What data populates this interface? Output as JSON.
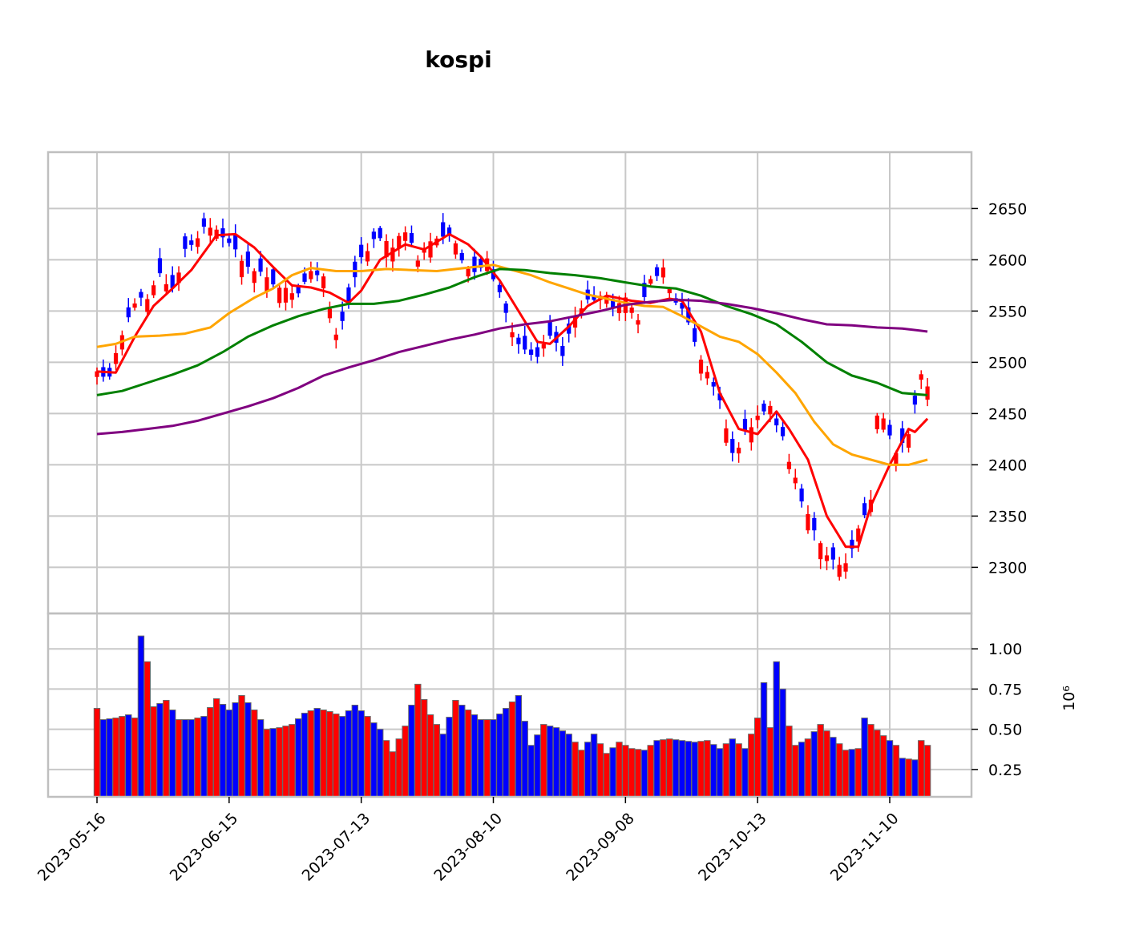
{
  "chart_data": {
    "type": "candlestick",
    "title": "kospi",
    "xlabel": "",
    "ylabel": "",
    "x_tick_labels": [
      "2023-05-16",
      "2023-06-15",
      "2023-07-13",
      "2023-08-10",
      "2023-09-08",
      "2023-10-13",
      "2023-11-10"
    ],
    "x_tick_index": [
      0,
      21,
      42,
      63,
      84,
      105,
      126
    ],
    "num_sessions": 133,
    "grid": true,
    "price_panel": {
      "ylim": [
        2255,
        2705
      ],
      "yticks": [
        2300,
        2350,
        2400,
        2450,
        2500,
        2550,
        2600,
        2650
      ],
      "up_color": "#ff0000",
      "down_color": "#0000ff",
      "anchors": [
        [
          0,
          2490
        ],
        [
          2,
          2485
        ],
        [
          4,
          2525
        ],
        [
          6,
          2560
        ],
        [
          8,
          2560
        ],
        [
          10,
          2585
        ],
        [
          12,
          2570
        ],
        [
          14,
          2610
        ],
        [
          17,
          2630
        ],
        [
          20,
          2625
        ],
        [
          23,
          2600
        ],
        [
          25,
          2590
        ],
        [
          27,
          2580
        ],
        [
          30,
          2570
        ],
        [
          32,
          2570
        ],
        [
          34,
          2590
        ],
        [
          36,
          2580
        ],
        [
          38,
          2525
        ],
        [
          40,
          2560
        ],
        [
          42,
          2600
        ],
        [
          44,
          2620
        ],
        [
          47,
          2615
        ],
        [
          49,
          2630
        ],
        [
          51,
          2600
        ],
        [
          53,
          2620
        ],
        [
          56,
          2625
        ],
        [
          58,
          2600
        ],
        [
          60,
          2590
        ],
        [
          62,
          2600
        ],
        [
          64,
          2570
        ],
        [
          66,
          2530
        ],
        [
          68,
          2510
        ],
        [
          70,
          2505
        ],
        [
          72,
          2525
        ],
        [
          74,
          2510
        ],
        [
          76,
          2545
        ],
        [
          78,
          2560
        ],
        [
          80,
          2565
        ],
        [
          82,
          2555
        ],
        [
          84,
          2560
        ],
        [
          86,
          2545
        ],
        [
          88,
          2580
        ],
        [
          90,
          2590
        ],
        [
          91,
          2570
        ],
        [
          93,
          2550
        ],
        [
          95,
          2520
        ],
        [
          97,
          2490
        ],
        [
          99,
          2460
        ],
        [
          101,
          2410
        ],
        [
          103,
          2430
        ],
        [
          105,
          2450
        ],
        [
          107,
          2455
        ],
        [
          109,
          2425
        ],
        [
          111,
          2385
        ],
        [
          112,
          2365
        ],
        [
          114,
          2340
        ],
        [
          116,
          2310
        ],
        [
          118,
          2300
        ],
        [
          119,
          2300
        ],
        [
          121,
          2335
        ],
        [
          123,
          2370
        ],
        [
          124,
          2450
        ],
        [
          125,
          2445
        ],
        [
          127,
          2410
        ],
        [
          129,
          2430
        ],
        [
          131,
          2485
        ],
        [
          132,
          2475
        ]
      ],
      "moving_averages": [
        {
          "color": "#ff0000",
          "points": [
            [
              0,
              2491
            ],
            [
              3,
              2490
            ],
            [
              6,
              2525
            ],
            [
              9,
              2555
            ],
            [
              12,
              2572
            ],
            [
              15,
              2590
            ],
            [
              19,
              2624
            ],
            [
              22,
              2625
            ],
            [
              25,
              2612
            ],
            [
              28,
              2593
            ],
            [
              31,
              2575
            ],
            [
              34,
              2573
            ],
            [
              37,
              2568
            ],
            [
              40,
              2558
            ],
            [
              42,
              2570
            ],
            [
              45,
              2600
            ],
            [
              49,
              2615
            ],
            [
              52,
              2610
            ],
            [
              56,
              2625
            ],
            [
              59,
              2615
            ],
            [
              61,
              2603
            ],
            [
              64,
              2580
            ],
            [
              67,
              2550
            ],
            [
              70,
              2520
            ],
            [
              72,
              2518
            ],
            [
              75,
              2535
            ],
            [
              78,
              2555
            ],
            [
              81,
              2565
            ],
            [
              85,
              2560
            ],
            [
              88,
              2558
            ],
            [
              91,
              2562
            ],
            [
              93,
              2560
            ],
            [
              96,
              2530
            ],
            [
              99,
              2470
            ],
            [
              102,
              2435
            ],
            [
              105,
              2430
            ],
            [
              108,
              2452
            ],
            [
              110,
              2435
            ],
            [
              113,
              2405
            ],
            [
              116,
              2350
            ],
            [
              119,
              2320
            ],
            [
              121,
              2320
            ],
            [
              123,
              2360
            ],
            [
              126,
              2400
            ],
            [
              129,
              2435
            ],
            [
              130,
              2432
            ],
            [
              132,
              2445
            ]
          ]
        },
        {
          "color": "#ffa500",
          "points": [
            [
              0,
              2515
            ],
            [
              3,
              2518
            ],
            [
              6,
              2525
            ],
            [
              10,
              2526
            ],
            [
              14,
              2528
            ],
            [
              18,
              2534
            ],
            [
              21,
              2548
            ],
            [
              25,
              2563
            ],
            [
              28,
              2572
            ],
            [
              31,
              2585
            ],
            [
              34,
              2592
            ],
            [
              38,
              2589
            ],
            [
              42,
              2589
            ],
            [
              46,
              2591
            ],
            [
              50,
              2590
            ],
            [
              54,
              2589
            ],
            [
              57,
              2591
            ],
            [
              60,
              2593
            ],
            [
              63,
              2595
            ],
            [
              66,
              2590
            ],
            [
              69,
              2585
            ],
            [
              72,
              2578
            ],
            [
              75,
              2572
            ],
            [
              78,
              2566
            ],
            [
              81,
              2562
            ],
            [
              84,
              2558
            ],
            [
              87,
              2555
            ],
            [
              90,
              2554
            ],
            [
              93,
              2545
            ],
            [
              96,
              2535
            ],
            [
              99,
              2525
            ],
            [
              102,
              2520
            ],
            [
              105,
              2508
            ],
            [
              108,
              2490
            ],
            [
              111,
              2470
            ],
            [
              114,
              2442
            ],
            [
              117,
              2420
            ],
            [
              120,
              2410
            ],
            [
              123,
              2405
            ],
            [
              126,
              2400
            ],
            [
              129,
              2400
            ],
            [
              132,
              2405
            ]
          ]
        },
        {
          "color": "#008000",
          "points": [
            [
              0,
              2468
            ],
            [
              4,
              2472
            ],
            [
              8,
              2480
            ],
            [
              12,
              2488
            ],
            [
              16,
              2497
            ],
            [
              20,
              2510
            ],
            [
              24,
              2525
            ],
            [
              28,
              2536
            ],
            [
              32,
              2545
            ],
            [
              36,
              2552
            ],
            [
              40,
              2557
            ],
            [
              44,
              2557
            ],
            [
              48,
              2560
            ],
            [
              52,
              2566
            ],
            [
              56,
              2573
            ],
            [
              60,
              2583
            ],
            [
              64,
              2591
            ],
            [
              68,
              2590
            ],
            [
              72,
              2587
            ],
            [
              76,
              2585
            ],
            [
              80,
              2582
            ],
            [
              84,
              2578
            ],
            [
              88,
              2574
            ],
            [
              92,
              2572
            ],
            [
              96,
              2565
            ],
            [
              100,
              2555
            ],
            [
              104,
              2547
            ],
            [
              108,
              2537
            ],
            [
              112,
              2520
            ],
            [
              116,
              2500
            ],
            [
              120,
              2487
            ],
            [
              124,
              2480
            ],
            [
              128,
              2470
            ],
            [
              132,
              2468
            ]
          ]
        },
        {
          "color": "#800080",
          "points": [
            [
              0,
              2430
            ],
            [
              4,
              2432
            ],
            [
              8,
              2435
            ],
            [
              12,
              2438
            ],
            [
              16,
              2443
            ],
            [
              20,
              2450
            ],
            [
              24,
              2457
            ],
            [
              28,
              2465
            ],
            [
              32,
              2475
            ],
            [
              36,
              2487
            ],
            [
              40,
              2495
            ],
            [
              44,
              2502
            ],
            [
              48,
              2510
            ],
            [
              52,
              2516
            ],
            [
              56,
              2522
            ],
            [
              60,
              2527
            ],
            [
              64,
              2533
            ],
            [
              68,
              2537
            ],
            [
              72,
              2540
            ],
            [
              76,
              2545
            ],
            [
              80,
              2550
            ],
            [
              84,
              2556
            ],
            [
              88,
              2559
            ],
            [
              92,
              2561
            ],
            [
              96,
              2560
            ],
            [
              100,
              2557
            ],
            [
              104,
              2553
            ],
            [
              108,
              2548
            ],
            [
              112,
              2542
            ],
            [
              116,
              2537
            ],
            [
              120,
              2536
            ],
            [
              124,
              2534
            ],
            [
              128,
              2533
            ],
            [
              132,
              2530
            ]
          ]
        }
      ]
    },
    "volume_panel": {
      "scale_label": "10⁶",
      "ylim": [
        0.08,
        1.22
      ],
      "yticks": [
        0.25,
        0.5,
        0.75,
        1.0
      ],
      "ytick_labels": [
        "0.25",
        "0.50",
        "0.75",
        "1.00"
      ],
      "anchors": [
        [
          0,
          0.63
        ],
        [
          1,
          0.56
        ],
        [
          3,
          0.57
        ],
        [
          5,
          0.59
        ],
        [
          6,
          0.57
        ],
        [
          7,
          1.08
        ],
        [
          8,
          0.92
        ],
        [
          9,
          0.64
        ],
        [
          11,
          0.68
        ],
        [
          13,
          0.56
        ],
        [
          15,
          0.56
        ],
        [
          17,
          0.58
        ],
        [
          19,
          0.69
        ],
        [
          21,
          0.62
        ],
        [
          23,
          0.71
        ],
        [
          25,
          0.62
        ],
        [
          27,
          0.5
        ],
        [
          29,
          0.51
        ],
        [
          31,
          0.53
        ],
        [
          33,
          0.6
        ],
        [
          35,
          0.63
        ],
        [
          37,
          0.61
        ],
        [
          39,
          0.58
        ],
        [
          41,
          0.65
        ],
        [
          43,
          0.58
        ],
        [
          45,
          0.5
        ],
        [
          46,
          0.43
        ],
        [
          47,
          0.36
        ],
        [
          49,
          0.52
        ],
        [
          51,
          0.78
        ],
        [
          53,
          0.59
        ],
        [
          55,
          0.47
        ],
        [
          57,
          0.68
        ],
        [
          59,
          0.62
        ],
        [
          61,
          0.56
        ],
        [
          63,
          0.56
        ],
        [
          65,
          0.63
        ],
        [
          67,
          0.71
        ],
        [
          68,
          0.55
        ],
        [
          69,
          0.4
        ],
        [
          71,
          0.53
        ],
        [
          73,
          0.51
        ],
        [
          75,
          0.47
        ],
        [
          77,
          0.37
        ],
        [
          79,
          0.47
        ],
        [
          81,
          0.35
        ],
        [
          83,
          0.42
        ],
        [
          85,
          0.38
        ],
        [
          87,
          0.37
        ],
        [
          89,
          0.43
        ],
        [
          91,
          0.44
        ],
        [
          93,
          0.43
        ],
        [
          95,
          0.42
        ],
        [
          97,
          0.43
        ],
        [
          99,
          0.38
        ],
        [
          101,
          0.44
        ],
        [
          103,
          0.38
        ],
        [
          104,
          0.47
        ],
        [
          105,
          0.57
        ],
        [
          106,
          0.79
        ],
        [
          107,
          0.51
        ],
        [
          108,
          0.92
        ],
        [
          109,
          0.75
        ],
        [
          110,
          0.52
        ],
        [
          111,
          0.4
        ],
        [
          113,
          0.44
        ],
        [
          115,
          0.53
        ],
        [
          117,
          0.45
        ],
        [
          119,
          0.37
        ],
        [
          121,
          0.38
        ],
        [
          122,
          0.57
        ],
        [
          123,
          0.53
        ],
        [
          125,
          0.46
        ],
        [
          127,
          0.4
        ],
        [
          128,
          0.32
        ],
        [
          130,
          0.31
        ],
        [
          131,
          0.43
        ],
        [
          132,
          0.4
        ]
      ]
    }
  }
}
